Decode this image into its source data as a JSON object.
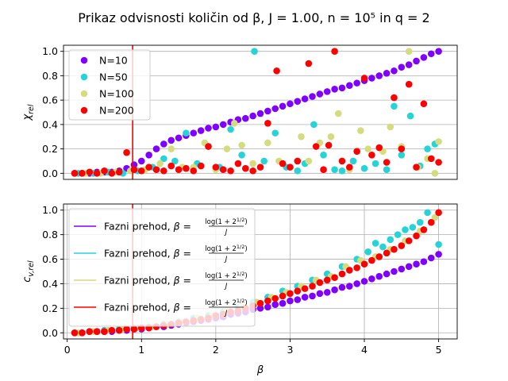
{
  "figure": {
    "title": "Prikaz odvisnosti količin od β, J = 1.00, n = 10⁵ in q = 2"
  },
  "chart_data": [
    {
      "type": "scatter",
      "xlabel": "",
      "ylabel": "χ_rel",
      "xlim": [
        -0.05,
        5.25
      ],
      "ylim": [
        -0.05,
        1.05
      ],
      "xticks": [],
      "yticks": [
        0.0,
        0.2,
        0.4,
        0.6,
        0.8,
        1.0
      ],
      "grid": true,
      "legend_position": "top-left",
      "vline": {
        "x": 0.881,
        "color": "#ff0000"
      },
      "series": [
        {
          "name": "N=10",
          "color": "#8000ff",
          "x": [
            0.1,
            0.2,
            0.3,
            0.4,
            0.5,
            0.6,
            0.7,
            0.8,
            0.9,
            1.0,
            1.1,
            1.2,
            1.3,
            1.4,
            1.5,
            1.6,
            1.7,
            1.8,
            1.9,
            2.0,
            2.1,
            2.2,
            2.3,
            2.4,
            2.5,
            2.6,
            2.7,
            2.8,
            2.9,
            3.0,
            3.1,
            3.2,
            3.3,
            3.4,
            3.5,
            3.6,
            3.7,
            3.8,
            3.9,
            4.0,
            4.1,
            4.2,
            4.3,
            4.4,
            4.5,
            4.6,
            4.7,
            4.8,
            4.9,
            5.0
          ],
          "y": [
            0.0,
            0.0,
            0.0,
            0.01,
            0.01,
            0.01,
            0.02,
            0.04,
            0.07,
            0.1,
            0.15,
            0.2,
            0.24,
            0.27,
            0.29,
            0.31,
            0.33,
            0.35,
            0.37,
            0.38,
            0.4,
            0.42,
            0.44,
            0.45,
            0.47,
            0.49,
            0.51,
            0.53,
            0.55,
            0.57,
            0.59,
            0.61,
            0.63,
            0.65,
            0.67,
            0.69,
            0.7,
            0.72,
            0.74,
            0.76,
            0.78,
            0.8,
            0.82,
            0.84,
            0.87,
            0.89,
            0.92,
            0.95,
            0.98,
            1.0
          ]
        },
        {
          "name": "N=50",
          "color": "#26d4d8",
          "x": [
            0.15,
            0.35,
            0.55,
            0.75,
            0.95,
            1.15,
            1.3,
            1.45,
            1.6,
            1.75,
            1.9,
            2.05,
            2.2,
            2.35,
            2.52,
            2.65,
            2.8,
            2.95,
            3.1,
            3.2,
            3.32,
            3.45,
            3.6,
            3.7,
            3.85,
            4.0,
            4.15,
            4.3,
            4.4,
            4.5,
            4.62,
            4.75,
            4.85,
            4.95
          ],
          "y": [
            0.0,
            0.0,
            0.01,
            0.0,
            0.02,
            0.05,
            0.12,
            0.1,
            0.33,
            0.08,
            0.22,
            0.05,
            0.36,
            0.15,
            1.0,
            0.1,
            0.33,
            0.05,
            0.02,
            0.08,
            0.4,
            0.15,
            0.03,
            0.02,
            0.1,
            0.04,
            0.08,
            0.03,
            0.55,
            0.15,
            0.47,
            0.06,
            0.2,
            0.24
          ]
        },
        {
          "name": "N=100",
          "color": "#d4dc7f",
          "x": [
            0.25,
            0.45,
            0.65,
            0.85,
            1.05,
            1.25,
            1.4,
            1.55,
            1.7,
            1.85,
            2.0,
            2.15,
            2.25,
            2.35,
            2.5,
            2.7,
            2.85,
            3.0,
            3.15,
            3.25,
            3.4,
            3.55,
            3.65,
            3.8,
            3.95,
            4.05,
            4.25,
            4.35,
            4.5,
            4.6,
            4.72,
            4.85,
            4.95,
            5.0
          ],
          "y": [
            0.0,
            0.0,
            0.01,
            0.02,
            0.03,
            0.08,
            0.2,
            0.05,
            0.05,
            0.25,
            0.03,
            0.2,
            0.41,
            0.23,
            0.08,
            0.25,
            0.1,
            0.05,
            0.3,
            0.1,
            0.25,
            0.3,
            0.49,
            0.03,
            0.35,
            0.2,
            0.18,
            0.38,
            0.22,
            1.0,
            0.05,
            0.12,
            0.0,
            0.26
          ]
        },
        {
          "name": "N=200",
          "color": "#ff0000",
          "x": [
            0.1,
            0.2,
            0.3,
            0.4,
            0.5,
            0.6,
            0.7,
            0.8,
            0.9,
            1.0,
            1.1,
            1.2,
            1.3,
            1.4,
            1.5,
            1.6,
            1.7,
            1.8,
            1.9,
            2.0,
            2.1,
            2.2,
            2.3,
            2.4,
            2.5,
            2.6,
            2.7,
            2.82,
            2.9,
            3.0,
            3.1,
            3.25,
            3.35,
            3.45,
            3.52,
            3.6,
            3.7,
            3.8,
            3.9,
            4.0,
            4.1,
            4.2,
            4.3,
            4.4,
            4.5,
            4.6,
            4.7,
            4.8,
            4.9,
            5.0
          ],
          "y": [
            0.0,
            0.0,
            0.01,
            0.0,
            0.02,
            0.0,
            0.01,
            0.17,
            0.03,
            0.02,
            0.05,
            0.03,
            0.02,
            0.06,
            0.03,
            0.04,
            0.02,
            0.06,
            0.22,
            0.05,
            0.03,
            0.02,
            0.08,
            0.04,
            0.02,
            0.05,
            0.41,
            0.84,
            0.08,
            0.05,
            0.1,
            0.9,
            0.22,
            0.03,
            0.23,
            1.0,
            0.1,
            0.05,
            0.18,
            0.78,
            0.15,
            0.21,
            0.09,
            0.62,
            0.2,
            0.73,
            0.05,
            0.57,
            0.12,
            0.09
          ]
        }
      ]
    },
    {
      "type": "scatter",
      "xlabel": "β",
      "ylabel": "c_v,rel",
      "xlim": [
        -0.05,
        5.25
      ],
      "ylim": [
        -0.05,
        1.05
      ],
      "xticks": [
        0,
        1,
        2,
        3,
        4,
        5
      ],
      "yticks": [
        0.0,
        0.2,
        0.4,
        0.6,
        0.8,
        1.0
      ],
      "grid": true,
      "legend_position": "top-left",
      "vline": {
        "x": 0.881,
        "color": "#ff0000"
      },
      "legend_entries": [
        {
          "label": "Fazni prehod, β = log(1 + 2^1/2) / J",
          "color": "#8000ff"
        },
        {
          "label": "Fazni prehod, β = log(1 + 2^1/2) / J",
          "color": "#26d4d8"
        },
        {
          "label": "Fazni prehod, β = log(1 + 2^1/2) / J",
          "color": "#d4dc7f"
        },
        {
          "label": "Fazni prehod, β = log(1 + 2^1/2) / J",
          "color": "#ff0000"
        }
      ],
      "series": [
        {
          "name": "N=10",
          "color": "#8000ff",
          "x": [
            0.1,
            0.2,
            0.3,
            0.4,
            0.5,
            0.6,
            0.7,
            0.8,
            0.9,
            1.0,
            1.1,
            1.2,
            1.3,
            1.4,
            1.5,
            1.6,
            1.7,
            1.8,
            1.9,
            2.0,
            2.1,
            2.2,
            2.3,
            2.4,
            2.5,
            2.6,
            2.7,
            2.8,
            2.9,
            3.0,
            3.1,
            3.2,
            3.3,
            3.4,
            3.5,
            3.6,
            3.7,
            3.8,
            3.9,
            4.0,
            4.1,
            4.2,
            4.3,
            4.4,
            4.5,
            4.6,
            4.7,
            4.8,
            4.9,
            5.0
          ],
          "y": [
            0.0,
            0.0,
            0.01,
            0.01,
            0.01,
            0.01,
            0.02,
            0.02,
            0.03,
            0.03,
            0.04,
            0.05,
            0.05,
            0.06,
            0.07,
            0.08,
            0.09,
            0.1,
            0.11,
            0.12,
            0.13,
            0.15,
            0.16,
            0.17,
            0.19,
            0.2,
            0.21,
            0.23,
            0.24,
            0.26,
            0.27,
            0.29,
            0.3,
            0.32,
            0.33,
            0.35,
            0.37,
            0.38,
            0.4,
            0.42,
            0.44,
            0.46,
            0.48,
            0.5,
            0.52,
            0.54,
            0.56,
            0.58,
            0.61,
            0.64
          ]
        },
        {
          "name": "N=50",
          "color": "#26d4d8",
          "x": [
            0.1,
            0.3,
            0.5,
            0.7,
            0.9,
            1.1,
            1.3,
            1.5,
            1.7,
            1.9,
            2.1,
            2.3,
            2.5,
            2.7,
            2.9,
            3.1,
            3.3,
            3.5,
            3.7,
            3.9,
            4.05,
            4.15,
            4.25,
            4.35,
            4.45,
            4.55,
            4.65,
            4.75,
            4.85,
            5.0
          ],
          "y": [
            0.0,
            0.01,
            0.02,
            0.03,
            0.04,
            0.05,
            0.07,
            0.09,
            0.12,
            0.14,
            0.17,
            0.21,
            0.25,
            0.29,
            0.34,
            0.38,
            0.43,
            0.48,
            0.54,
            0.6,
            0.66,
            0.73,
            0.7,
            0.76,
            0.8,
            0.84,
            0.86,
            0.9,
            0.98,
            0.72
          ]
        },
        {
          "name": "N=100",
          "color": "#d4dc7f",
          "x": [
            0.15,
            0.35,
            0.55,
            0.75,
            0.95,
            1.15,
            1.35,
            1.55,
            1.75,
            1.95,
            2.15,
            2.35,
            2.55,
            2.75,
            2.95,
            3.15,
            3.35,
            3.55,
            3.75,
            3.95,
            4.15,
            4.35,
            4.55,
            4.75,
            4.95
          ],
          "y": [
            0.0,
            0.01,
            0.02,
            0.03,
            0.04,
            0.05,
            0.07,
            0.09,
            0.12,
            0.14,
            0.18,
            0.22,
            0.25,
            0.29,
            0.33,
            0.38,
            0.43,
            0.46,
            0.54,
            0.59,
            0.62,
            0.68,
            0.75,
            0.83,
            0.94
          ]
        },
        {
          "name": "N=200",
          "color": "#ff0000",
          "x": [
            0.1,
            0.2,
            0.3,
            0.4,
            0.5,
            0.6,
            0.7,
            0.8,
            0.9,
            1.0,
            1.1,
            1.2,
            1.3,
            1.4,
            1.5,
            1.6,
            1.7,
            1.8,
            1.9,
            2.0,
            2.1,
            2.2,
            2.3,
            2.4,
            2.5,
            2.6,
            2.7,
            2.8,
            2.9,
            3.0,
            3.1,
            3.2,
            3.3,
            3.4,
            3.5,
            3.6,
            3.7,
            3.8,
            3.9,
            4.0,
            4.1,
            4.2,
            4.3,
            4.4,
            4.5,
            4.6,
            4.7,
            4.8,
            4.9,
            5.0
          ],
          "y": [
            0.0,
            0.0,
            0.01,
            0.01,
            0.01,
            0.02,
            0.02,
            0.03,
            0.03,
            0.04,
            0.04,
            0.05,
            0.06,
            0.07,
            0.08,
            0.09,
            0.1,
            0.11,
            0.12,
            0.14,
            0.15,
            0.17,
            0.18,
            0.2,
            0.22,
            0.24,
            0.26,
            0.28,
            0.3,
            0.32,
            0.34,
            0.36,
            0.38,
            0.41,
            0.43,
            0.45,
            0.48,
            0.51,
            0.53,
            0.56,
            0.59,
            0.62,
            0.65,
            0.68,
            0.71,
            0.75,
            0.79,
            0.84,
            0.9,
            0.98
          ]
        }
      ]
    }
  ]
}
